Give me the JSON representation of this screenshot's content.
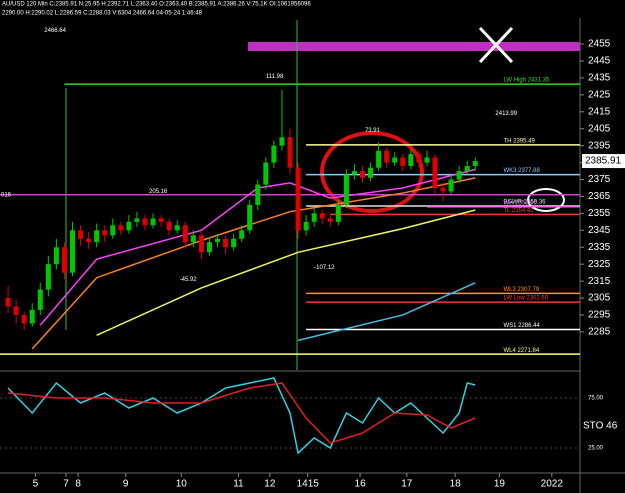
{
  "chart_data": {
    "type": "candlestick",
    "header": [
      "AU/USD 120 Min C:2385.91 N:25.95 H:2392.71 L:2363.40 O:2363.40 B:2385.91 A:2386.26 V:75.1K OI:1061956096",
      "2290.00 H:2290.02 L:2286.59 C:2288.03 V:6304 2466.64 04-05-24 1:46:48"
    ],
    "open": [
      2305,
      2300,
      2295,
      2290,
      2298,
      2310,
      2325,
      2335,
      2320,
      2345,
      2340,
      2338,
      2345,
      2342,
      2348,
      2345,
      2350,
      2352,
      2348,
      2352,
      2350,
      2345,
      2348,
      2338,
      2342,
      2332,
      2338,
      2340,
      2335,
      2340,
      2345,
      2360,
      2372,
      2385,
      2395,
      2400,
      2382,
      2345,
      2350,
      2355,
      2352,
      2350,
      2360,
      2378,
      2380,
      2376,
      2382,
      2392,
      2385,
      2388,
      2383,
      2390,
      2385,
      2388,
      2370,
      2368,
      2375,
      2380,
      2383
    ],
    "high": [
      2312,
      2304,
      2297,
      2302,
      2314,
      2330,
      2340,
      2338,
      2350,
      2348,
      2344,
      2349,
      2348,
      2352,
      2350,
      2354,
      2356,
      2354,
      2355,
      2354,
      2352,
      2351,
      2350,
      2345,
      2344,
      2341,
      2343,
      2342,
      2343,
      2348,
      2363,
      2375,
      2388,
      2398,
      2428,
      2405,
      2385,
      2354,
      2358,
      2357,
      2355,
      2363,
      2381,
      2384,
      2383,
      2385,
      2397,
      2394,
      2391,
      2390,
      2393,
      2392,
      2392,
      2390,
      2373,
      2378,
      2383,
      2386,
      2388
    ],
    "low": [
      2296,
      2290,
      2286,
      2288,
      2295,
      2306,
      2322,
      2316,
      2318,
      2336,
      2334,
      2335,
      2338,
      2340,
      2342,
      2343,
      2347,
      2345,
      2346,
      2347,
      2342,
      2343,
      2334,
      2335,
      2328,
      2330,
      2335,
      2331,
      2333,
      2338,
      2343,
      2357,
      2369,
      2382,
      2392,
      2378,
      2340,
      2342,
      2347,
      2349,
      2347,
      2348,
      2358,
      2375,
      2373,
      2374,
      2380,
      2382,
      2383,
      2380,
      2381,
      2382,
      2383,
      2366,
      2362,
      2366,
      2373,
      2378,
      2380
    ],
    "close": [
      2300,
      2295,
      2290,
      2298,
      2310,
      2325,
      2335,
      2320,
      2345,
      2340,
      2338,
      2345,
      2342,
      2348,
      2345,
      2350,
      2352,
      2348,
      2352,
      2350,
      2345,
      2348,
      2338,
      2342,
      2332,
      2338,
      2340,
      2335,
      2340,
      2345,
      2360,
      2372,
      2385,
      2395,
      2400,
      2382,
      2345,
      2350,
      2355,
      2352,
      2350,
      2360,
      2378,
      2380,
      2376,
      2382,
      2392,
      2385,
      2388,
      2383,
      2390,
      2385,
      2388,
      2370,
      2368,
      2375,
      2380,
      2383,
      2385.91
    ],
    "up_color": "#00c800",
    "down_color": "#e00000",
    "xlim": [
      -1,
      71
    ],
    "xticks": [
      {
        "value": 3.4,
        "label": "5"
      },
      {
        "value": 7.2,
        "label": "7"
      },
      {
        "value": 8.7,
        "label": "8"
      },
      {
        "value": 14.6,
        "label": "9"
      },
      {
        "value": 21.5,
        "label": "10"
      },
      {
        "value": 28.6,
        "label": "11"
      },
      {
        "value": 32.5,
        "label": "12"
      },
      {
        "value": 37.2,
        "label": "1415"
      },
      {
        "value": 43.7,
        "label": "16"
      },
      {
        "value": 49.5,
        "label": "17"
      },
      {
        "value": 55.5,
        "label": "18"
      },
      {
        "value": 61,
        "label": "19"
      },
      {
        "value": 67.5,
        "label": "2022"
      }
    ],
    "ylim": [
      2262.5,
      2470.4
    ],
    "yticks": [
      2285,
      2295,
      2305,
      2315,
      2325,
      2335,
      2345,
      2355,
      2365,
      2375,
      2385,
      2395,
      2405,
      2415,
      2425,
      2435,
      2445,
      2455
    ],
    "last_price": 2385.91,
    "overlays": [
      {
        "color": "#ff40ff",
        "x": [
          4,
          11,
          24,
          31,
          35,
          40,
          49,
          58
        ],
        "values": [
          2289,
          2328,
          2345,
          2370,
          2373,
          2364,
          2370,
          2381
        ]
      },
      {
        "color": "#ff8020",
        "x": [
          3,
          11,
          24,
          35,
          49,
          58
        ],
        "values": [
          2275,
          2317,
          2339,
          2356,
          2367,
          2376
        ]
      },
      {
        "color": "#f0f060",
        "x": [
          11,
          24,
          36,
          49,
          58
        ],
        "values": [
          2283,
          2311,
          2332,
          2346,
          2357
        ]
      },
      {
        "color": "#40c0e0",
        "x": [
          36,
          49,
          58
        ],
        "values": [
          2280,
          2295,
          2314
        ]
      }
    ],
    "levels": [
      {
        "label": "LW High 2431.35",
        "value": 2431.35,
        "start": 7,
        "color": "#20e020"
      },
      {
        "label": "TH 2395.49",
        "value": 2395.49,
        "start": 37,
        "color": "#ffffa0"
      },
      {
        "label": "WK3 2377.88",
        "value": 2377.88,
        "start": 37,
        "color": "#90c8ff"
      },
      {
        "label": "BGWR 2359.36",
        "value": 2359.36,
        "start": 37,
        "color": "#e0e0e0"
      },
      {
        "label": "WH 2358.90",
        "value": 2358.9,
        "start": 52,
        "color": "#ff60ff"
      },
      {
        "label": "TL 2354.41",
        "value": 2354.41,
        "start": 40,
        "color": "#ff3030"
      },
      {
        "label": "WL3 2307.79",
        "value": 2307.79,
        "start": 37,
        "color": "#ff9040"
      },
      {
        "label": "LW Low 2302.60",
        "value": 2302.6,
        "start": 37,
        "color": "#ff3030"
      },
      {
        "label": "WS1 2286.44",
        "value": 2286.44,
        "start": 37,
        "color": "#ffffff"
      },
      {
        "label": "WL4 2271.84",
        "value": 2271.84,
        "start": -1,
        "color": "#ffff60"
      },
      {
        "value": 2366,
        "start": -1,
        "color": "#d040d0"
      }
    ],
    "annotations": [
      {
        "text": "2466.64",
        "x": 4.5,
        "y": 2463
      },
      {
        "text": "111.98",
        "x": 32,
        "y": 2436
      },
      {
        "text": "2413.99",
        "x": 60.5,
        "y": 2414
      },
      {
        "text": "73.91",
        "x": 44.3,
        "y": 2404
      },
      {
        "text": "205.16",
        "x": 17.5,
        "y": 2368
      },
      {
        "text": "-45.92",
        "x": 21.3,
        "y": 2316
      },
      {
        "text": "-107.12",
        "x": 38,
        "y": 2323
      },
      {
        "text": "016",
        "x": -1,
        "y": 2366
      }
    ],
    "stochastic": {
      "label": "STO 46",
      "ylim": [
        0,
        100
      ],
      "yticks": [
        {
          "value": 75,
          "label": "75.00"
        },
        {
          "value": 25,
          "label": "25.00"
        }
      ],
      "series": [
        {
          "color": "#30d0e0",
          "x": [
            0,
            3,
            6,
            9,
            12,
            15,
            18,
            21,
            24,
            27,
            30,
            33,
            35,
            36,
            38,
            40,
            42,
            44,
            46,
            48,
            50,
            52,
            54,
            56,
            57,
            58
          ],
          "values": [
            85,
            60,
            90,
            70,
            80,
            65,
            75,
            60,
            70,
            85,
            90,
            95,
            60,
            20,
            35,
            25,
            60,
            50,
            75,
            60,
            70,
            55,
            40,
            60,
            90,
            88
          ]
        },
        {
          "color": "#e02020",
          "x": [
            0,
            6,
            12,
            18,
            24,
            30,
            34,
            37,
            40,
            44,
            48,
            52,
            55,
            58
          ],
          "values": [
            80,
            75,
            75,
            70,
            70,
            85,
            90,
            55,
            30,
            40,
            60,
            58,
            45,
            55
          ]
        }
      ]
    }
  }
}
